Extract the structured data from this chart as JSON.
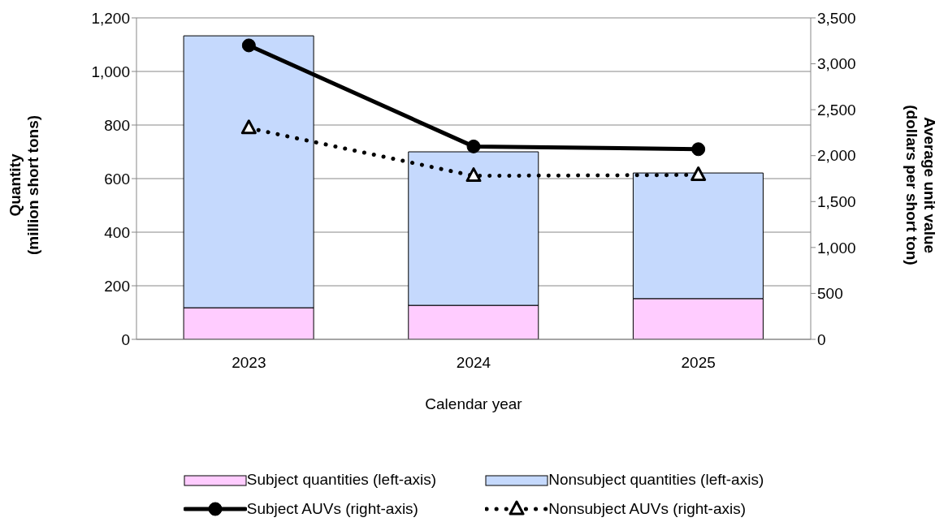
{
  "chart_data": {
    "type": "bar",
    "stacked": true,
    "xlabel": "Calendar year",
    "ylabel": "Quantity\n(million short tons)",
    "y2label": "Average unit value\n(dollars per short ton)",
    "categories": [
      "2023",
      "2024",
      "2025"
    ],
    "series": [
      {
        "name": "Subject quantities (left-axis)",
        "color": "#ffccff",
        "values": [
          118,
          127,
          152
        ]
      },
      {
        "name": "Nonsubject quantities (left-axis)",
        "color": "#c5d9fd",
        "values": [
          1015,
          573,
          469
        ]
      },
      {
        "name": "Subject AUVs (right-axis)",
        "type": "line",
        "axis": "y2",
        "color": "#000000",
        "marker": "circle",
        "line_style": "solid",
        "values": [
          3200,
          2100,
          2070
        ]
      },
      {
        "name": "Nonsubject AUVs (right-axis)",
        "type": "line",
        "axis": "y2",
        "color": "#000000",
        "marker": "triangle",
        "line_style": "dotted",
        "values": [
          2300,
          1780,
          1790
        ]
      }
    ],
    "ylim": [
      0,
      1200
    ],
    "yticks": [
      0,
      200,
      400,
      600,
      800,
      {
        "value": 1000,
        "label": "1,000"
      },
      {
        "value": 1200,
        "label": "1,200"
      }
    ],
    "y2lim": [
      0,
      3500
    ],
    "y2ticks": [
      0,
      500,
      {
        "value": 1000,
        "label": "1,000"
      },
      {
        "value": 1500,
        "label": "1,500"
      },
      {
        "value": 2000,
        "label": "2,000"
      },
      {
        "value": 2500,
        "label": "2,500"
      },
      {
        "value": 3000,
        "label": "3,000"
      },
      {
        "value": 3500,
        "label": "3,500"
      }
    ],
    "grid": "y",
    "legend": "bottom"
  }
}
